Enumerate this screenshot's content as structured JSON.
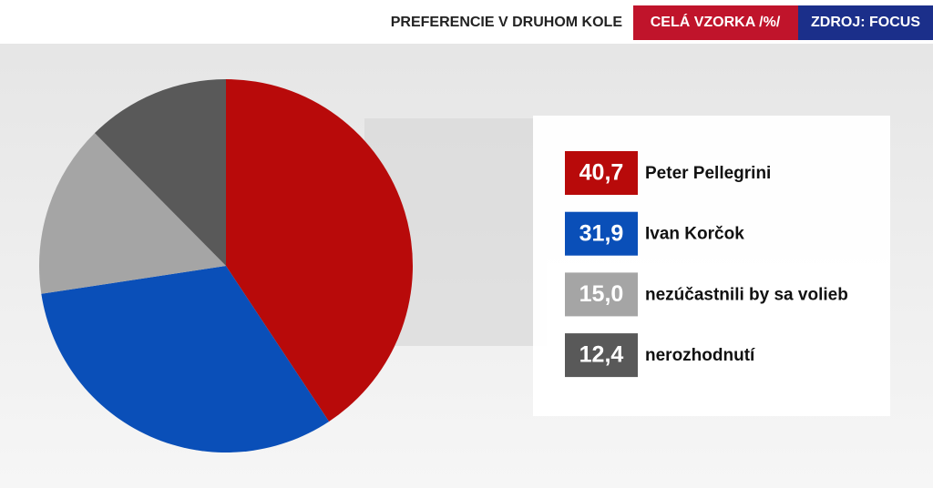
{
  "chart_data": {
    "type": "pie",
    "title": "PREFERENCIE V DRUHOM KOLE",
    "subtitle": "CELÁ VZORKA /%/",
    "source": "ZDROJ: FOCUS",
    "categories": [
      "Peter Pellegrini",
      "Ivan Korčok",
      "nezúčastnili by sa volieb",
      "nerozhodnutí"
    ],
    "values": [
      40.7,
      31.9,
      15.0,
      12.4
    ],
    "value_labels": [
      "40,7",
      "31,9",
      "15,0",
      "12,4"
    ],
    "colors": [
      "#b80a0a",
      "#0a4fb8",
      "#a5a5a5",
      "#595959"
    ]
  }
}
